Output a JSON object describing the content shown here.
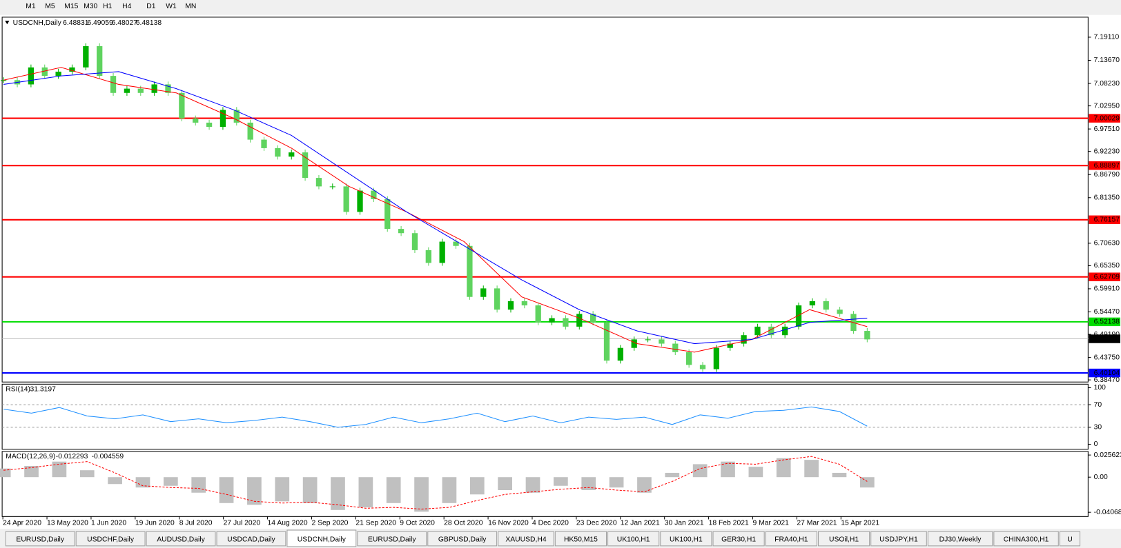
{
  "toolbar": {
    "timeframes": [
      "M1",
      "M5",
      "M15",
      "M30",
      "H1",
      "H4",
      "D1",
      "W1",
      "MN"
    ]
  },
  "chart_data": [
    {
      "type": "candlestick",
      "title": "USDCNH,Daily",
      "quote": [
        6.48831,
        6.49059,
        6.48027,
        6.48138
      ],
      "date_labels": [
        "24 Apr 2020",
        "13 May 2020",
        "1 Jun 2020",
        "19 Jun 2020",
        "8 Jul 2020",
        "27 Jul 2020",
        "14 Aug 2020",
        "2 Sep 2020",
        "21 Sep 2020",
        "9 Oct 2020",
        "28 Oct 2020",
        "16 Nov 2020",
        "4 Dec 2020",
        "23 Dec 2020",
        "12 Jan 2021",
        "30 Jan 2021",
        "18 Feb 2021",
        "9 Mar 2021",
        "27 Mar 2021",
        "15 Apr 2021"
      ],
      "values": [
        7.09,
        7.08,
        7.12,
        7.1,
        7.11,
        7.12,
        7.17,
        7.1,
        7.06,
        7.07,
        7.06,
        7.08,
        7.06,
        7.0,
        6.99,
        6.98,
        7.02,
        6.99,
        6.95,
        6.93,
        6.91,
        6.92,
        6.86,
        6.84,
        6.84,
        6.78,
        6.83,
        6.81,
        6.74,
        6.73,
        6.69,
        6.66,
        6.71,
        6.7,
        6.58,
        6.6,
        6.55,
        6.57,
        6.56,
        6.52,
        6.53,
        6.51,
        6.54,
        6.52,
        6.43,
        6.46,
        6.48,
        6.48,
        6.47,
        6.45,
        6.42,
        6.41,
        6.46,
        6.47,
        6.49,
        6.51,
        6.49,
        6.51,
        6.56,
        6.57,
        6.55,
        6.54,
        6.5,
        6.48
      ],
      "up_color": "#00b000",
      "down_color": "#5fd35f",
      "series": [
        {
          "color": "#ff0000",
          "values": [
            7.09,
            7.12,
            7.08,
            7.06,
            7.0,
            6.93,
            6.84,
            6.78,
            6.71,
            6.58,
            6.53,
            6.47,
            6.45,
            6.48,
            6.55,
            6.51
          ]
        },
        {
          "color": "#0000ff",
          "values": [
            7.08,
            7.1,
            7.11,
            7.07,
            7.02,
            6.96,
            6.87,
            6.78,
            6.7,
            6.62,
            6.55,
            6.5,
            6.47,
            6.48,
            6.52,
            6.53
          ]
        }
      ],
      "ylim": [
        6.3797,
        7.2382
      ],
      "yticks": [
        {
          "value": 7.1911,
          "label": "7.19110"
        },
        {
          "value": 7.1367,
          "label": "7.13670"
        },
        {
          "value": 7.0823,
          "label": "7.08230"
        },
        {
          "value": 7.0295,
          "label": "7.02950"
        },
        {
          "value": 6.9751,
          "label": "6.97510"
        },
        {
          "value": 6.9223,
          "label": "6.92230"
        },
        {
          "value": 6.8679,
          "label": "6.86790"
        },
        {
          "value": 6.8135,
          "label": "6.81350"
        },
        {
          "value": 6.7063,
          "label": "6.70630"
        },
        {
          "value": 6.6535,
          "label": "6.65350"
        },
        {
          "value": 6.5991,
          "label": "6.59910"
        },
        {
          "value": 6.5447,
          "label": "6.54470"
        },
        {
          "value": 6.4919,
          "label": "6.49190"
        },
        {
          "value": 6.4375,
          "label": "6.43750"
        },
        {
          "value": 6.3847,
          "label": "6.38470"
        }
      ],
      "levels": [
        {
          "value": 7.00029,
          "color": "#ff0000"
        },
        {
          "value": 6.88897,
          "color": "#ff0000"
        },
        {
          "value": 6.76157,
          "color": "#ff0000"
        },
        {
          "value": 6.62709,
          "color": "#ff0000"
        },
        {
          "value": 6.52138,
          "color": "#00dd00"
        },
        {
          "value": 6.40104,
          "color": "#0000ff"
        },
        {
          "value": 6.48138,
          "color": "#c0c0c0"
        }
      ]
    },
    {
      "type": "line",
      "name": "RSI(14)",
      "readout": [
        31.3197
      ],
      "color": "#1e90ff",
      "values": [
        62,
        55,
        65,
        50,
        45,
        52,
        40,
        45,
        38,
        42,
        48,
        40,
        30,
        35,
        48,
        38,
        45,
        55,
        40,
        50,
        38,
        48,
        44,
        48,
        35,
        52,
        46,
        58,
        60,
        66,
        58,
        32
      ],
      "ylim": [
        -8.9,
        106.3
      ],
      "yticks": [
        100,
        70,
        30,
        0
      ],
      "levels": [
        70,
        30
      ]
    },
    {
      "type": "macd",
      "name": "MACD(12,26,9)",
      "readout": [
        -0.012293,
        -0.004559
      ],
      "color": "#c0c0c0",
      "signal_color": "#ff0000",
      "values": [
        0.01,
        0.013,
        0.018,
        0.008,
        -0.008,
        -0.012,
        -0.01,
        -0.018,
        -0.03,
        -0.032,
        -0.028,
        -0.03,
        -0.038,
        -0.035,
        -0.03,
        -0.04,
        -0.03,
        -0.02,
        -0.015,
        -0.018,
        -0.01,
        -0.015,
        -0.012,
        -0.018,
        0.005,
        0.015,
        0.018,
        0.012,
        0.022,
        0.02,
        0.005,
        -0.012
      ],
      "signal": [
        0.008,
        0.011,
        0.015,
        0.018,
        0.005,
        -0.01,
        -0.012,
        -0.013,
        -0.02,
        -0.028,
        -0.03,
        -0.029,
        -0.032,
        -0.036,
        -0.035,
        -0.037,
        -0.035,
        -0.027,
        -0.02,
        -0.017,
        -0.014,
        -0.012,
        -0.015,
        -0.017,
        -0.005,
        0.01,
        0.016,
        0.015,
        0.02,
        0.024,
        0.015,
        -0.005
      ],
      "ylim": [
        -0.0456,
        0.0298
      ],
      "yticks": [
        {
          "value": 0.025623,
          "label": "0.025623"
        },
        {
          "value": 0,
          "label": "0.00"
        },
        {
          "value": -0.040687,
          "label": "-0.040687"
        }
      ]
    }
  ],
  "tabs": {
    "items": [
      "EURUSD,Daily",
      "USDCHF,Daily",
      "AUDUSD,Daily",
      "USDCAD,Daily",
      "USDCNH,Daily",
      "EURUSD,Daily",
      "GBPUSD,Daily",
      "XAUUSD,H4",
      "HK50,M15",
      "UK100,H1",
      "UK100,H1",
      "GER30,H1",
      "FRA40,H1",
      "USOil,H1",
      "USDJPY,H1",
      "DJ30,Weekly",
      "CHINA300,H1",
      "U"
    ],
    "active": "USDCNH,Daily"
  }
}
